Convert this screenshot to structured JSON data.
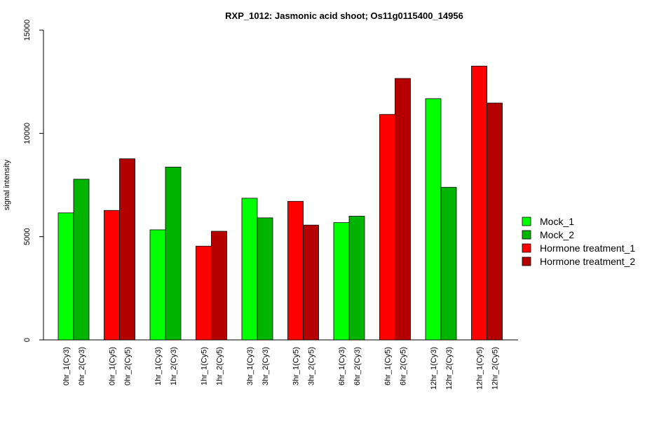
{
  "chart_data": {
    "type": "bar",
    "title": "RXP_1012: Jasmonic acid shoot; Os11g0115400_14956",
    "xlabel": "",
    "ylabel": "signal intensity",
    "ylim": [
      0,
      15000
    ],
    "yticks": [
      0,
      5000,
      10000,
      15000
    ],
    "grid": false,
    "legend_position": "right",
    "legend": [
      {
        "name": "Mock_1",
        "color": "#00ff00"
      },
      {
        "name": "Mock_2",
        "color": "#00b400"
      },
      {
        "name": "Hormone treatment_1",
        "color": "#ff0000"
      },
      {
        "name": "Hormone treatment_2",
        "color": "#b40000"
      }
    ],
    "groups": [
      {
        "bars": [
          {
            "label": "0hr_1(Cy3)",
            "value": 6150,
            "color": "#00ff00"
          },
          {
            "label": "0hr_2(Cy3)",
            "value": 7780,
            "color": "#00b400"
          }
        ]
      },
      {
        "bars": [
          {
            "label": "0hr_1(Cy5)",
            "value": 6270,
            "color": "#ff0000"
          },
          {
            "label": "0hr_2(Cy5)",
            "value": 8770,
            "color": "#b40000"
          }
        ]
      },
      {
        "bars": [
          {
            "label": "1hr_1(Cy3)",
            "value": 5330,
            "color": "#00ff00"
          },
          {
            "label": "1hr_2(Cy3)",
            "value": 8370,
            "color": "#00b400"
          }
        ]
      },
      {
        "bars": [
          {
            "label": "1hr_1(Cy5)",
            "value": 4540,
            "color": "#ff0000"
          },
          {
            "label": "1hr_2(Cy5)",
            "value": 5260,
            "color": "#b40000"
          }
        ]
      },
      {
        "bars": [
          {
            "label": "3hr_1(Cy3)",
            "value": 6860,
            "color": "#00ff00"
          },
          {
            "label": "3hr_2(Cy3)",
            "value": 5910,
            "color": "#00b400"
          }
        ]
      },
      {
        "bars": [
          {
            "label": "3hr_1(Cy5)",
            "value": 6710,
            "color": "#ff0000"
          },
          {
            "label": "3hr_2(Cy5)",
            "value": 5560,
            "color": "#b40000"
          }
        ]
      },
      {
        "bars": [
          {
            "label": "6hr_1(Cy3)",
            "value": 5680,
            "color": "#00ff00"
          },
          {
            "label": "6hr_2(Cy3)",
            "value": 5990,
            "color": "#00b400"
          }
        ]
      },
      {
        "bars": [
          {
            "label": "6hr_1(Cy5)",
            "value": 10920,
            "color": "#ff0000"
          },
          {
            "label": "6hr_2(Cy5)",
            "value": 12660,
            "color": "#b40000"
          }
        ]
      },
      {
        "bars": [
          {
            "label": "12hr_1(Cy3)",
            "value": 11680,
            "color": "#00ff00"
          },
          {
            "label": "12hr_2(Cy3)",
            "value": 7390,
            "color": "#00b400"
          }
        ]
      },
      {
        "bars": [
          {
            "label": "12hr_1(Cy5)",
            "value": 13260,
            "color": "#ff0000"
          },
          {
            "label": "12hr_2(Cy5)",
            "value": 11470,
            "color": "#b40000"
          }
        ]
      }
    ]
  }
}
